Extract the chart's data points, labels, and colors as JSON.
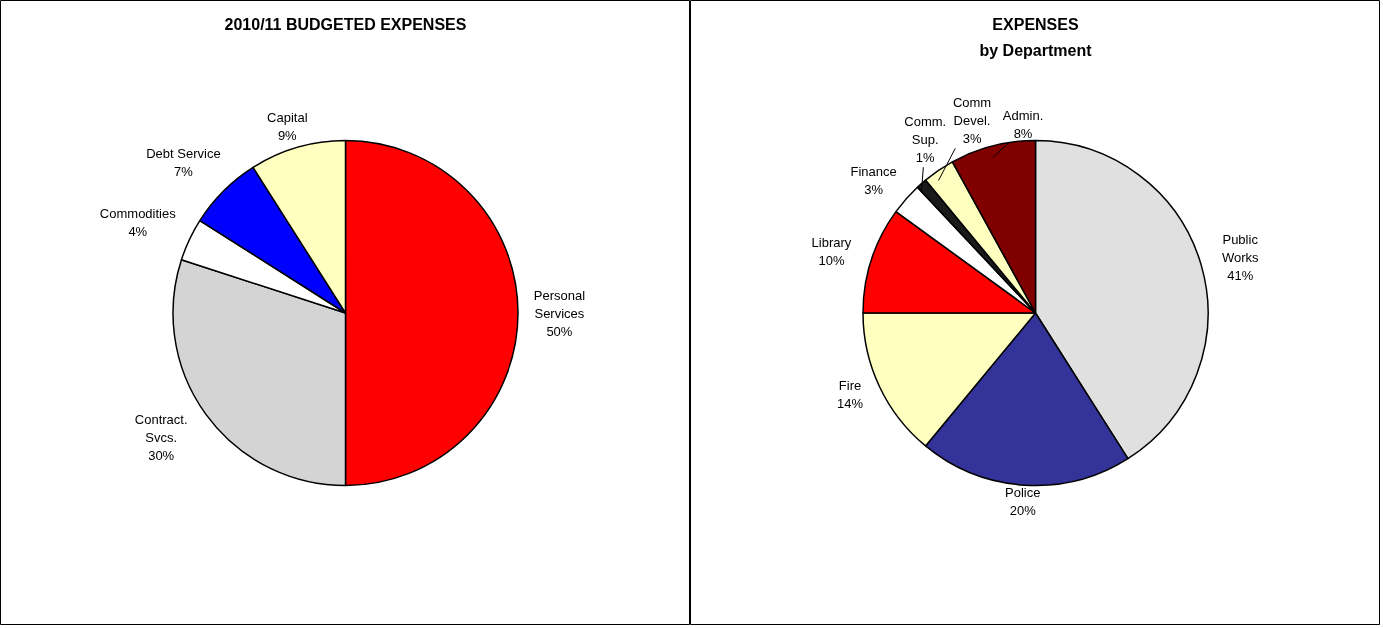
{
  "chart_data": [
    {
      "type": "pie",
      "title": "2010/11 BUDGETED EXPENSES",
      "categories": [
        "Personal\nServices",
        "Contract.\nSvcs.",
        "Commodities",
        "Debt Service",
        "Capital"
      ],
      "values": [
        50,
        30,
        4,
        7,
        9
      ],
      "value_labels": [
        "50%",
        "30%",
        "4%",
        "7%",
        "9%"
      ],
      "colors": [
        "#ff0000",
        "#d4d4d4",
        "#ffffff",
        "#0000ff",
        "#ffffc0"
      ],
      "data_labels": true
    },
    {
      "type": "pie",
      "title": "EXPENSES\nby Department",
      "categories": [
        "Public\nWorks",
        "Police",
        "Fire",
        "Library",
        "Finance",
        "Comm.\nSup.",
        "Comm\nDevel.",
        "Admin."
      ],
      "values": [
        41,
        20,
        14,
        10,
        3,
        1,
        3,
        8
      ],
      "value_labels": [
        "41%",
        "20%",
        "14%",
        "10%",
        "3%",
        "1%",
        "3%",
        "8%"
      ],
      "colors": [
        "#e0e0e0",
        "#333399",
        "#ffffc0",
        "#ff0000",
        "#ffffff",
        "#1a1a1a",
        "#ffffc0",
        "#800000"
      ],
      "data_labels": true
    }
  ]
}
